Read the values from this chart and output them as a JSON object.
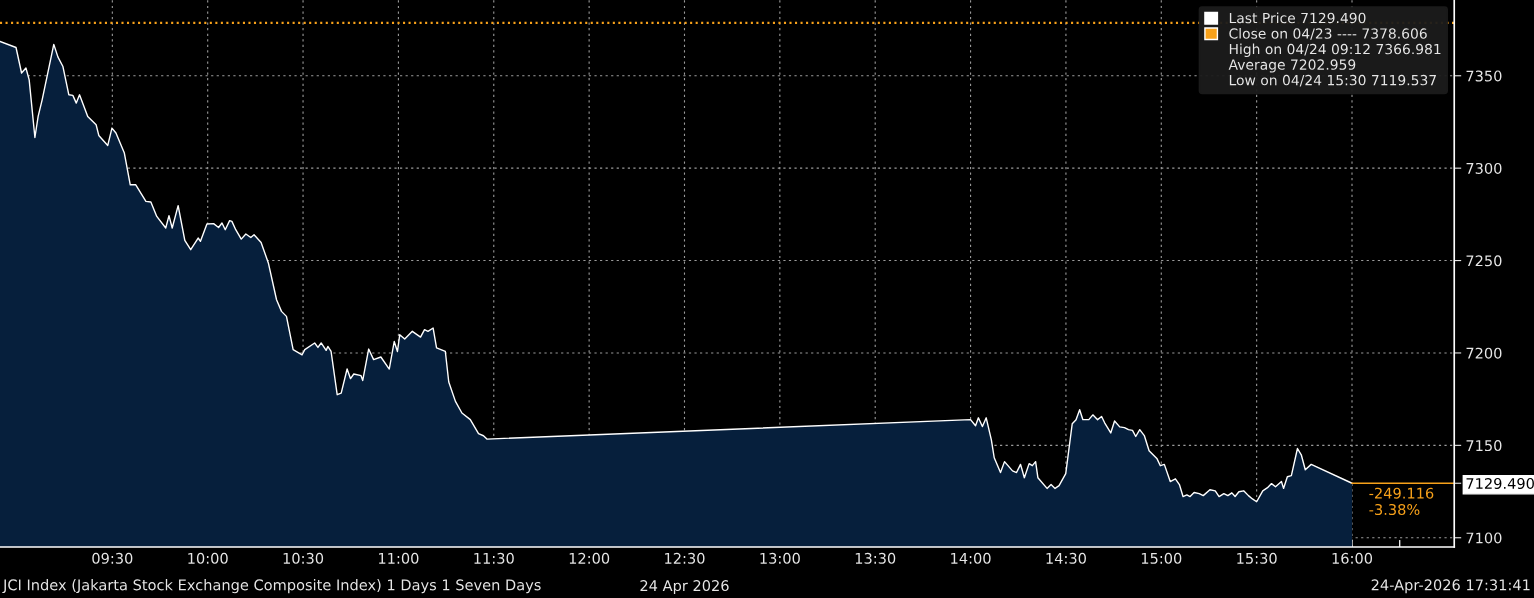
{
  "chart_data": {
    "type": "area",
    "title": "JCI Index (Jakarta Stock Exchange Composite Index) 1 Days 1 Seven Days",
    "subtitle": "24-Apr-2026 17:31:41",
    "xlabel": "24 Apr 2026",
    "xlim": [
      8.911,
      16.536
    ],
    "xticks": [
      {
        "value": 9.0,
        "label": null
      },
      {
        "value": 9.25,
        "label": null
      },
      {
        "value": 9.5,
        "label": "09:30"
      },
      {
        "value": 9.75,
        "label": null
      },
      {
        "value": 10.0,
        "label": "10:00"
      },
      {
        "value": 10.25,
        "label": null
      },
      {
        "value": 10.5,
        "label": "10:30"
      },
      {
        "value": 10.75,
        "label": null
      },
      {
        "value": 11.0,
        "label": "11:00"
      },
      {
        "value": 11.25,
        "label": null
      },
      {
        "value": 11.5,
        "label": "11:30"
      },
      {
        "value": 11.75,
        "label": null
      },
      {
        "value": 12.0,
        "label": "12:00"
      },
      {
        "value": 12.25,
        "label": null
      },
      {
        "value": 12.5,
        "label": "12:30"
      },
      {
        "value": 12.75,
        "label": null
      },
      {
        "value": 13.0,
        "label": "13:00"
      },
      {
        "value": 13.25,
        "label": null
      },
      {
        "value": 13.5,
        "label": "13:30"
      },
      {
        "value": 13.75,
        "label": null
      },
      {
        "value": 14.0,
        "label": "14:00"
      },
      {
        "value": 14.25,
        "label": null
      },
      {
        "value": 14.5,
        "label": "14:30"
      },
      {
        "value": 14.75,
        "label": null
      },
      {
        "value": 15.0,
        "label": "15:00"
      },
      {
        "value": 15.25,
        "label": null
      },
      {
        "value": 15.5,
        "label": "15:30"
      },
      {
        "value": 15.75,
        "label": null
      },
      {
        "value": 16.0,
        "label": "16:00"
      },
      {
        "value": 16.25,
        "label": null
      }
    ],
    "ylim": [
      7095,
      7391
    ],
    "yticks": [
      7100,
      7150,
      7200,
      7250,
      7300,
      7350,
      {
        "value": 7129.49,
        "label": "7129.490"
      }
    ],
    "grid": true,
    "legend": "top right",
    "series": [
      {
        "name": "Last Price 7129.490",
        "color": "#ffffff",
        "x": [
          8.911,
          8.995,
          9.024,
          9.047,
          9.064,
          9.094,
          9.111,
          9.132,
          9.193,
          9.215,
          9.241,
          9.272,
          9.293,
          9.311,
          9.328,
          9.371,
          9.415,
          9.429,
          9.476,
          9.498,
          9.519,
          9.563,
          9.594,
          9.623,
          9.676,
          9.702,
          9.733,
          9.78,
          9.797,
          9.814,
          9.845,
          9.88,
          9.911,
          9.95,
          9.962,
          9.996,
          10.031,
          10.057,
          10.075,
          10.092,
          10.115,
          10.127,
          10.147,
          10.176,
          10.2,
          10.226,
          10.243,
          10.28,
          10.318,
          10.361,
          10.387,
          10.413,
          10.448,
          10.495,
          10.509,
          10.561,
          10.578,
          10.595,
          10.621,
          10.63,
          10.647,
          10.679,
          10.7,
          10.731,
          10.749,
          10.766,
          10.804,
          10.813,
          10.844,
          10.87,
          10.908,
          10.952,
          10.978,
          10.995,
          11.007,
          11.033,
          11.073,
          11.116,
          11.137,
          11.155,
          11.182,
          11.2,
          11.246,
          11.264,
          11.299,
          11.333,
          11.377,
          11.42,
          11.446,
          11.464,
          14.0,
          14.026,
          14.041,
          14.062,
          14.082,
          14.109,
          14.124,
          14.157,
          14.178,
          14.22,
          14.241,
          14.262,
          14.282,
          14.307,
          14.324,
          14.341,
          14.353,
          14.401,
          14.422,
          14.443,
          14.464,
          14.499,
          14.533,
          14.553,
          14.572,
          14.589,
          14.62,
          14.641,
          14.666,
          14.687,
          14.703,
          14.735,
          14.755,
          14.782,
          14.807,
          14.828,
          14.849,
          14.866,
          14.887,
          14.911,
          14.936,
          14.978,
          14.995,
          15.016,
          15.047,
          15.074,
          15.095,
          15.114,
          15.134,
          15.151,
          15.172,
          15.199,
          15.22,
          15.255,
          15.283,
          15.303,
          15.328,
          15.349,
          15.37,
          15.387,
          15.407,
          15.432,
          15.457,
          15.478,
          15.5,
          15.532,
          15.557,
          15.578,
          15.599,
          15.63,
          15.641,
          15.661,
          15.682,
          15.714,
          15.734,
          15.755,
          15.786,
          16.0
        ],
        "values": [
          7368.6,
          7365.3,
          7351.5,
          7354.2,
          7347.8,
          7316.6,
          7328.0,
          7337.0,
          7367.0,
          7360.1,
          7355.0,
          7339.7,
          7339.4,
          7335.2,
          7339.7,
          7328.0,
          7323.5,
          7317.7,
          7312.3,
          7321.7,
          7319.0,
          7308.2,
          7291.0,
          7291.0,
          7282.0,
          7281.7,
          7273.9,
          7267.6,
          7274.3,
          7267.6,
          7279.7,
          7260.9,
          7255.9,
          7262.2,
          7260.4,
          7269.8,
          7270.0,
          7267.9,
          7270.3,
          7266.7,
          7271.6,
          7271.2,
          7266.7,
          7261.6,
          7264.4,
          7262.5,
          7264.0,
          7259.8,
          7248.7,
          7228.8,
          7222.5,
          7219.8,
          7201.8,
          7199.0,
          7201.8,
          7205.4,
          7203.0,
          7205.4,
          7201.4,
          7203.5,
          7200.8,
          7177.4,
          7178.3,
          7191.3,
          7186.1,
          7188.6,
          7187.7,
          7185.1,
          7202.1,
          7196.4,
          7197.8,
          7191.3,
          7206.2,
          7200.8,
          7209.9,
          7207.5,
          7211.7,
          7208.6,
          7212.6,
          7211.7,
          7213.5,
          7202.7,
          7200.8,
          7184.3,
          7173.8,
          7167.5,
          7163.9,
          7156.3,
          7155.2,
          7153.4,
          7163.9,
          7160.6,
          7164.9,
          7160.2,
          7164.9,
          7153.0,
          7143.3,
          7135.3,
          7141.2,
          7136.2,
          7135.3,
          7139.7,
          7132.5,
          7140.1,
          7139.0,
          7141.2,
          7132.5,
          7126.7,
          7128.8,
          7126.7,
          7128.2,
          7134.7,
          7161.7,
          7163.9,
          7169.3,
          7163.9,
          7163.9,
          7166.5,
          7163.9,
          7165.6,
          7162.2,
          7156.7,
          7163.2,
          7160.0,
          7159.6,
          7158.5,
          7158.1,
          7154.8,
          7158.5,
          7155.3,
          7147.1,
          7142.7,
          7139.0,
          7139.7,
          7130.4,
          7131.9,
          7128.8,
          7122.3,
          7123.2,
          7122.3,
          7124.5,
          7123.9,
          7122.8,
          7126.0,
          7125.4,
          7122.3,
          7123.9,
          7122.8,
          7124.3,
          7122.3,
          7124.9,
          7125.4,
          7122.8,
          7121.0,
          7119.5,
          7125.4,
          7127.1,
          7129.3,
          7127.6,
          7130.4,
          7126.7,
          7133.0,
          7133.6,
          7148.3,
          7144.9,
          7136.8,
          7139.7,
          7129.49
        ]
      }
    ],
    "ref_lines": [
      {
        "axis": "y",
        "value": 7378.606,
        "label": "Close on 04/23 ---- 7378.606",
        "color": "#f7a11a",
        "line_style": "dotted"
      }
    ],
    "annotations": [
      "High on 04/24 09:12 7366.981",
      "Average 7202.959",
      "Low on 04/24 15:30 7119.537",
      {
        "text": "-249.116\n-3.38%",
        "x": 16.0,
        "y": 7129.49
      }
    ]
  }
}
